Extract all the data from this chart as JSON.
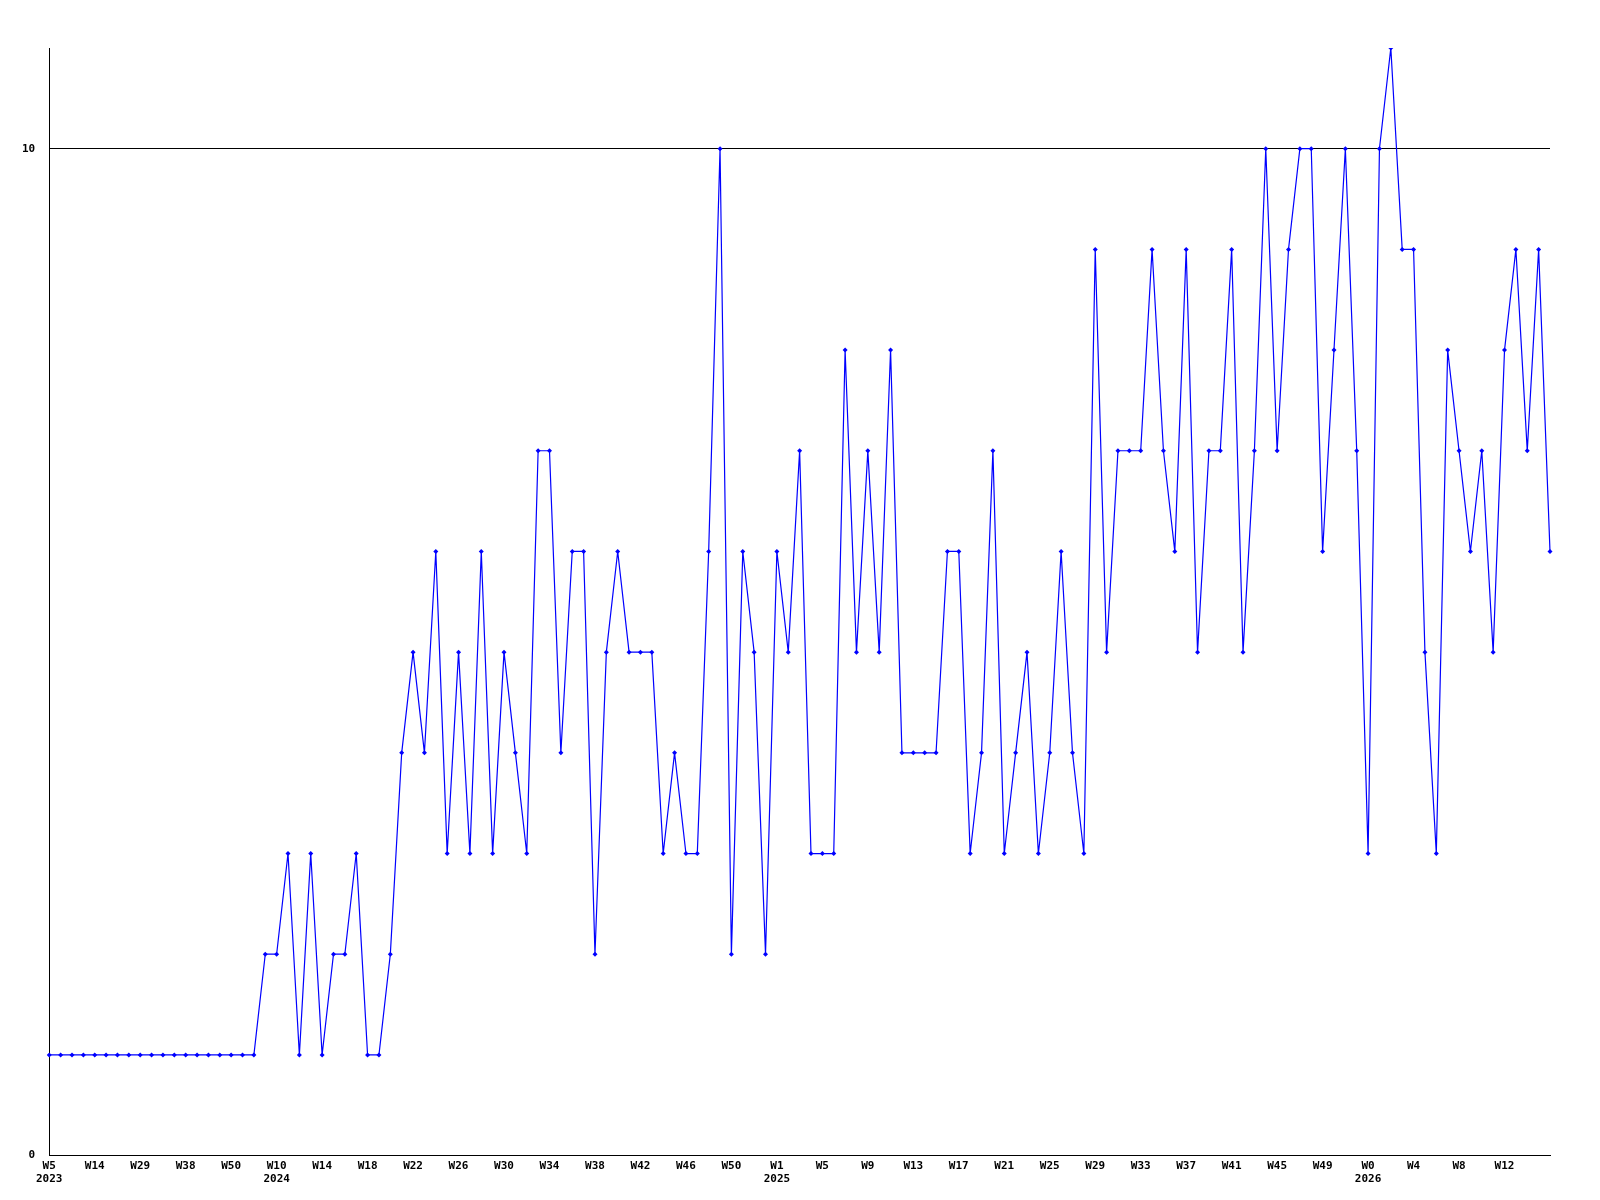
{
  "chart_data": {
    "type": "line",
    "categories": [
      "W5\n2023",
      null,
      null,
      null,
      "W14",
      null,
      null,
      null,
      "W29",
      null,
      null,
      null,
      "W38",
      null,
      null,
      null,
      "W50",
      null,
      null,
      null,
      "W10\n2024",
      null,
      null,
      null,
      "W14",
      null,
      null,
      null,
      "W18",
      null,
      null,
      null,
      "W22",
      null,
      null,
      null,
      "W26",
      null,
      null,
      null,
      "W30",
      null,
      null,
      null,
      "W34",
      null,
      null,
      null,
      "W38",
      null,
      null,
      null,
      "W42",
      null,
      null,
      null,
      "W46",
      null,
      null,
      null,
      "W50",
      null,
      null,
      null,
      "W1\n2025",
      null,
      null,
      null,
      "W5",
      null,
      null,
      null,
      "W9",
      null,
      null,
      null,
      "W13",
      null,
      null,
      null,
      "W17",
      null,
      null,
      null,
      "W21",
      null,
      null,
      null,
      "W25",
      null,
      null,
      null,
      "W29",
      null,
      null,
      null,
      "W33",
      null,
      null,
      null,
      "W37",
      null,
      null,
      null,
      "W41",
      null,
      null,
      null,
      "W45",
      null,
      null,
      null,
      "W49",
      null,
      null,
      null,
      "W0\n2026",
      null,
      null,
      null,
      "W4",
      null,
      null,
      null,
      "W8",
      null,
      null,
      null,
      "W12",
      null,
      null,
      null,
      null
    ],
    "series": [
      {
        "color": "#0000ff",
        "values": [
          1,
          1,
          1,
          1,
          1,
          1,
          1,
          1,
          1,
          1,
          1,
          1,
          1,
          1,
          1,
          1,
          1,
          1,
          1,
          2,
          2,
          3,
          1,
          3,
          1,
          2,
          2,
          3,
          1,
          1,
          2,
          4,
          5,
          4,
          6,
          3,
          5,
          3,
          6,
          3,
          5,
          4,
          3,
          7,
          7,
          4,
          6,
          6,
          2,
          5,
          6,
          5,
          5,
          5,
          3,
          4,
          3,
          3,
          6,
          10,
          2,
          6,
          5,
          2,
          6,
          5,
          7,
          3,
          3,
          3,
          8,
          5,
          7,
          5,
          8,
          4,
          4,
          4,
          4,
          6,
          6,
          3,
          4,
          7,
          3,
          4,
          5,
          3,
          4,
          6,
          4,
          3,
          9,
          5,
          7,
          7,
          7,
          9,
          7,
          6,
          9,
          5,
          7,
          7,
          9,
          5,
          7,
          10,
          7,
          9,
          10,
          10,
          6,
          8,
          10,
          7,
          3,
          10,
          11,
          9,
          9,
          5,
          3,
          8,
          7,
          6,
          7,
          5,
          8,
          9,
          7,
          9,
          6
        ]
      }
    ],
    "ylim": [
      0,
      11
    ],
    "yticks": [
      0,
      10
    ],
    "grid": "y",
    "marker": "diamond",
    "line_style": "solid",
    "legend": false
  }
}
